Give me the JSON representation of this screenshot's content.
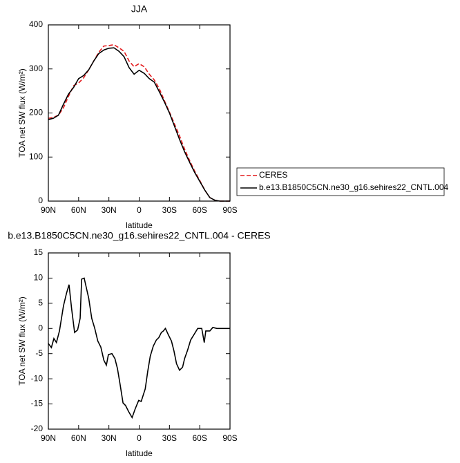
{
  "chart_data": [
    {
      "type": "line",
      "title": "JJA",
      "xlabel": "latitude",
      "ylabel": "TOA net SW flux (W/m²)",
      "x": [
        90,
        85,
        80,
        75,
        70,
        65,
        60,
        55,
        50,
        45,
        40,
        35,
        30,
        25,
        20,
        15,
        10,
        5,
        0,
        -5,
        -10,
        -15,
        -20,
        -25,
        -30,
        -35,
        -40,
        -45,
        -50,
        -55,
        -60,
        -65,
        -70,
        -75,
        -80,
        -85,
        -90
      ],
      "series": [
        {
          "name": "CERES",
          "color": "#e41a1c",
          "linestyle": "dashed",
          "values": [
            188,
            190,
            195,
            212,
            238,
            262,
            268,
            280,
            298,
            318,
            338,
            352,
            353,
            355,
            348,
            340,
            318,
            305,
            312,
            305,
            288,
            275,
            255,
            228,
            202,
            175,
            148,
            118,
            92,
            68,
            47,
            25,
            8,
            2,
            0,
            0,
            0
          ]
        },
        {
          "name": "b.e13.B1850C5CN.ne30_g16.sehires22_CNTL.004",
          "color": "#000000",
          "linestyle": "solid",
          "values": [
            185,
            188,
            195,
            220,
            243,
            258,
            278,
            285,
            298,
            318,
            335,
            343,
            347,
            348,
            340,
            328,
            303,
            288,
            297,
            290,
            278,
            270,
            248,
            225,
            200,
            170,
            140,
            112,
            88,
            65,
            45,
            25,
            8,
            2,
            0,
            0,
            0
          ]
        }
      ],
      "xlim": [
        90,
        -90
      ],
      "xticks": [
        {
          "value": 90,
          "label": "90N"
        },
        {
          "value": 60,
          "label": "60N"
        },
        {
          "value": 30,
          "label": "30N"
        },
        0,
        {
          "value": -30,
          "label": "30S"
        },
        {
          "value": -60,
          "label": "60S"
        },
        {
          "value": -90,
          "label": "90S"
        }
      ],
      "ylim": [
        0,
        400
      ],
      "yticks": [
        0,
        100,
        200,
        300,
        400
      ],
      "legend": "outside-right"
    },
    {
      "type": "line",
      "title": "b.e13.B1850C5CN.ne30_g16.sehires22_CNTL.004 - CERES",
      "xlabel": "latitude",
      "ylabel": "TOA net SW flux (W/m²)",
      "x": [
        90,
        87,
        84.5,
        82,
        79,
        75,
        72,
        69.5,
        67,
        64,
        61,
        58.5,
        57,
        54.5,
        50,
        47,
        44,
        41,
        38,
        35,
        32.5,
        30.5,
        27,
        24,
        21.5,
        19,
        16,
        13.5,
        10.5,
        7,
        4,
        0.5,
        -2,
        -6,
        -8.5,
        -11,
        -14,
        -17,
        -19.5,
        -22,
        -24,
        -26,
        -29,
        -32,
        -34.5,
        -37,
        -40,
        -43,
        -45,
        -48,
        -51,
        -55,
        -58,
        -62,
        -64.5,
        -66,
        -70,
        -73,
        -77,
        -82,
        -90
      ],
      "values": [
        -3,
        -3.8,
        -2,
        -2.8,
        -0.5,
        4.5,
        7,
        8.7,
        4,
        -0.8,
        -0.3,
        2,
        9.8,
        10,
        6,
        2,
        0,
        -2.5,
        -3.7,
        -6.3,
        -7.3,
        -5.2,
        -5,
        -6,
        -8,
        -11,
        -14.8,
        -15.3,
        -16.5,
        -17.7,
        -16,
        -14.3,
        -14.5,
        -12,
        -8.5,
        -5.5,
        -3.5,
        -2.3,
        -1.8,
        -0.8,
        -0.5,
        0,
        -1.3,
        -2.5,
        -4.5,
        -7,
        -8.3,
        -7.7,
        -6,
        -4.3,
        -2.3,
        -1,
        0,
        0,
        -2.8,
        -0.5,
        -0.5,
        0.2,
        0,
        0,
        0
      ],
      "color": "#000000",
      "xlim": [
        90,
        -90
      ],
      "xticks": [
        {
          "value": 90,
          "label": "90N"
        },
        {
          "value": 60,
          "label": "60N"
        },
        {
          "value": 30,
          "label": "30N"
        },
        0,
        {
          "value": -30,
          "label": "30S"
        },
        {
          "value": -60,
          "label": "60S"
        },
        {
          "value": -90,
          "label": "90S"
        }
      ],
      "ylim": [
        -20,
        15
      ],
      "yticks": [
        -20,
        -15,
        -10,
        -5,
        0,
        5,
        10,
        15
      ]
    }
  ]
}
